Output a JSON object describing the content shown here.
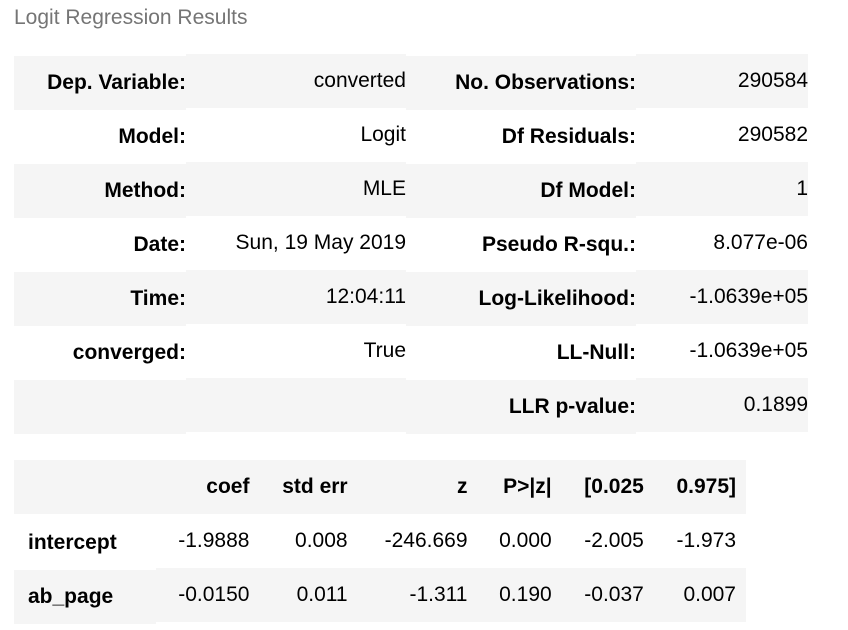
{
  "caption": "Logit Regression Results",
  "summary": {
    "rows": [
      {
        "k1": "Dep. Variable:",
        "v1": "converted",
        "k2": "No. Observations:",
        "v2": "290584"
      },
      {
        "k1": "Model:",
        "v1": "Logit",
        "k2": "Df Residuals:",
        "v2": "290582"
      },
      {
        "k1": "Method:",
        "v1": "MLE",
        "k2": "Df Model:",
        "v2": "1"
      },
      {
        "k1": "Date:",
        "v1": "Sun, 19 May 2019",
        "k2": "Pseudo R-squ.:",
        "v2": "8.077e-06"
      },
      {
        "k1": "Time:",
        "v1": "12:04:11",
        "k2": "Log-Likelihood:",
        "v2": "-1.0639e+05"
      },
      {
        "k1": "converged:",
        "v1": "True",
        "k2": "LL-Null:",
        "v2": "-1.0639e+05"
      },
      {
        "k1": "",
        "v1": "",
        "k2": "LLR p-value:",
        "v2": "0.1899"
      }
    ]
  },
  "coefficients": {
    "headers": [
      "",
      "coef",
      "std err",
      "z",
      "P>|z|",
      "[0.025",
      "0.975]"
    ],
    "rows": [
      {
        "name": "intercept",
        "values": [
          "-1.9888",
          "0.008",
          "-246.669",
          "0.000",
          "-2.005",
          "-1.973"
        ]
      },
      {
        "name": "ab_page",
        "values": [
          "-0.0150",
          "0.011",
          "-1.311",
          "0.190",
          "-0.037",
          "0.007"
        ]
      }
    ]
  }
}
